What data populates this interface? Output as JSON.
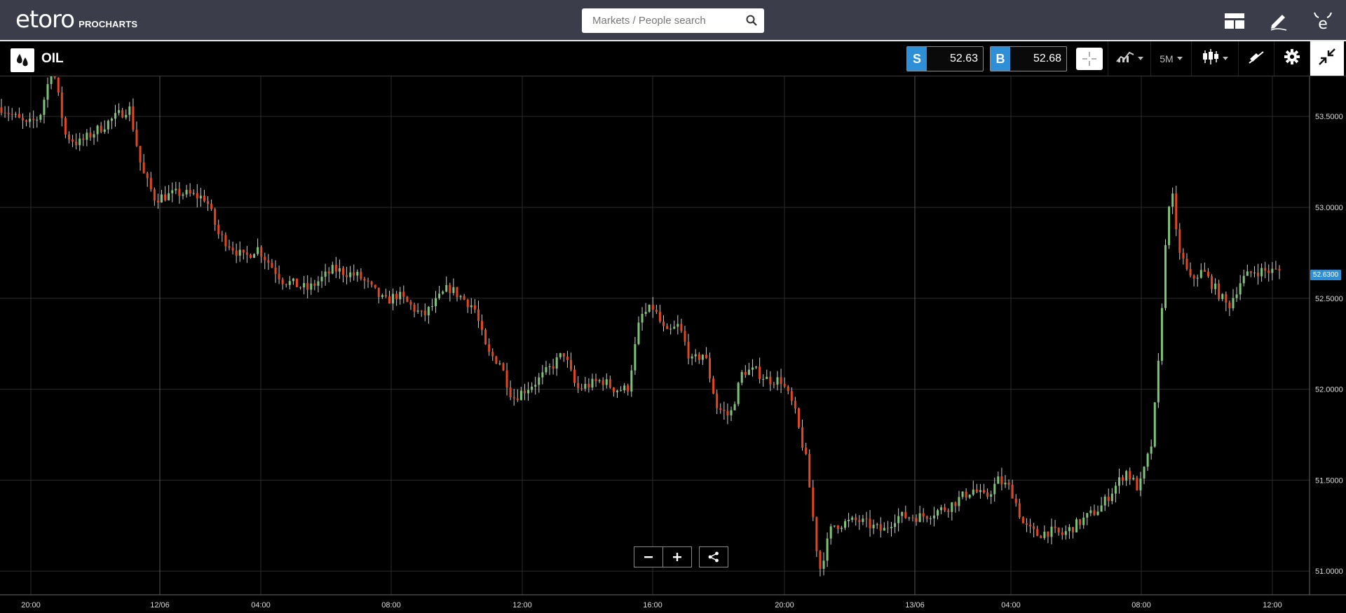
{
  "brand": {
    "logo_text": "etoro",
    "product": "PROCHARTS"
  },
  "search": {
    "placeholder": "Markets / People search"
  },
  "header_icons": [
    "layout-icon",
    "pencil-icon",
    "etoro-e-icon"
  ],
  "instrument": {
    "name": "OIL",
    "icon": "oil-drops-icon"
  },
  "prices": {
    "sell_label": "S",
    "sell_value": "52.63",
    "buy_label": "B",
    "buy_value": "52.68"
  },
  "toolbar": {
    "timeframe": "5M",
    "tools": [
      "crosshair-icon",
      "indicators-icon",
      "timeframe-dropdown",
      "candle-type-icon",
      "drawing-icon",
      "settings-icon",
      "collapse-icon"
    ]
  },
  "colors": {
    "accent": "#2e8fd6",
    "up": "#7cc576",
    "down": "#e4461e",
    "topbar": "#3b3e4a",
    "grid": "#2b2b2b"
  },
  "chart_data": {
    "type": "candlestick",
    "instrument": "OIL",
    "current_price": "52.6300",
    "y_ticks": [
      "53.5000",
      "53.0000",
      "52.5000",
      "52.0000",
      "51.5000",
      "51.0000"
    ],
    "x_ticks": [
      "20:00",
      "12/06",
      "04:00",
      "08:00",
      "12:00",
      "16:00",
      "20:00",
      "13/06",
      "04:00",
      "08:00",
      "12:00"
    ],
    "ylim": [
      50.87,
      53.72
    ],
    "close_path": [
      [
        0,
        53.55
      ],
      [
        0.02,
        53.45
      ],
      [
        0.03,
        53.5
      ],
      [
        0.04,
        53.78
      ],
      [
        0.05,
        53.4
      ],
      [
        0.06,
        53.35
      ],
      [
        0.08,
        53.45
      ],
      [
        0.1,
        53.55
      ],
      [
        0.11,
        53.2
      ],
      [
        0.12,
        53.05
      ],
      [
        0.14,
        53.08
      ],
      [
        0.16,
        53.05
      ],
      [
        0.17,
        52.85
      ],
      [
        0.19,
        52.72
      ],
      [
        0.2,
        52.78
      ],
      [
        0.22,
        52.6
      ],
      [
        0.24,
        52.55
      ],
      [
        0.26,
        52.66
      ],
      [
        0.28,
        52.62
      ],
      [
        0.3,
        52.48
      ],
      [
        0.31,
        52.52
      ],
      [
        0.33,
        52.4
      ],
      [
        0.34,
        52.48
      ],
      [
        0.35,
        52.56
      ],
      [
        0.37,
        52.45
      ],
      [
        0.38,
        52.2
      ],
      [
        0.39,
        52.15
      ],
      [
        0.4,
        51.95
      ],
      [
        0.42,
        52.05
      ],
      [
        0.43,
        52.12
      ],
      [
        0.44,
        52.2
      ],
      [
        0.45,
        52.0
      ],
      [
        0.47,
        52.05
      ],
      [
        0.48,
        52.0
      ],
      [
        0.49,
        52.0
      ],
      [
        0.5,
        52.4
      ],
      [
        0.51,
        52.45
      ],
      [
        0.52,
        52.3
      ],
      [
        0.53,
        52.35
      ],
      [
        0.54,
        52.15
      ],
      [
        0.55,
        52.2
      ],
      [
        0.56,
        51.9
      ],
      [
        0.57,
        51.85
      ],
      [
        0.58,
        52.1
      ],
      [
        0.59,
        52.1
      ],
      [
        0.6,
        52.05
      ],
      [
        0.61,
        52.05
      ],
      [
        0.62,
        51.9
      ],
      [
        0.63,
        51.6
      ],
      [
        0.635,
        51.3
      ],
      [
        0.64,
        51.0
      ],
      [
        0.65,
        51.25
      ],
      [
        0.67,
        51.28
      ],
      [
        0.69,
        51.22
      ],
      [
        0.7,
        51.3
      ],
      [
        0.72,
        51.3
      ],
      [
        0.74,
        51.35
      ],
      [
        0.76,
        51.45
      ],
      [
        0.77,
        51.4
      ],
      [
        0.78,
        51.5
      ],
      [
        0.79,
        51.45
      ],
      [
        0.8,
        51.25
      ],
      [
        0.81,
        51.2
      ],
      [
        0.82,
        51.22
      ],
      [
        0.83,
        51.2
      ],
      [
        0.85,
        51.3
      ],
      [
        0.86,
        51.35
      ],
      [
        0.87,
        51.45
      ],
      [
        0.88,
        51.55
      ],
      [
        0.89,
        51.45
      ],
      [
        0.9,
        51.7
      ],
      [
        0.905,
        52.1
      ],
      [
        0.91,
        52.7
      ],
      [
        0.915,
        53.15
      ],
      [
        0.92,
        52.8
      ],
      [
        0.93,
        52.6
      ],
      [
        0.94,
        52.65
      ],
      [
        0.95,
        52.55
      ],
      [
        0.96,
        52.45
      ],
      [
        0.97,
        52.6
      ],
      [
        0.98,
        52.65
      ]
    ]
  }
}
